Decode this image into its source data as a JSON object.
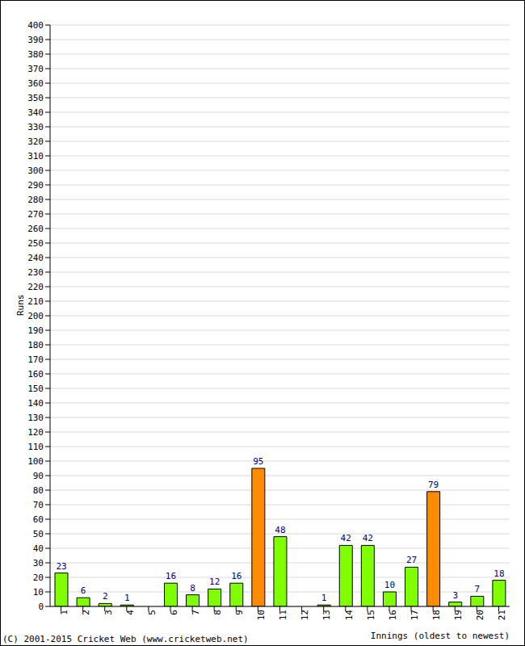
{
  "chart_data": {
    "type": "bar",
    "categories": [
      "1",
      "2",
      "3",
      "4",
      "5",
      "6",
      "7",
      "8",
      "9",
      "10",
      "11",
      "12",
      "13",
      "14",
      "15",
      "16",
      "17",
      "18",
      "19",
      "20",
      "21"
    ],
    "values": [
      23,
      6,
      2,
      1,
      0,
      16,
      8,
      12,
      16,
      95,
      48,
      0,
      1,
      42,
      42,
      10,
      27,
      79,
      3,
      7,
      18
    ],
    "colors": [
      "#7fff00",
      "#7fff00",
      "#7fff00",
      "#7fff00",
      "#7fff00",
      "#7fff00",
      "#7fff00",
      "#7fff00",
      "#7fff00",
      "#ff8c00",
      "#7fff00",
      "#7fff00",
      "#7fff00",
      "#7fff00",
      "#7fff00",
      "#7fff00",
      "#7fff00",
      "#ff8c00",
      "#7fff00",
      "#7fff00",
      "#7fff00"
    ],
    "x_label": "Innings (oldest to newest)",
    "y_label": "Runs",
    "footer": "(C) 2001-2015 Cricket Web (www.cricketweb.net)",
    "ylim": [
      0,
      400
    ],
    "yticks": [
      0,
      10,
      20,
      30,
      40,
      50,
      60,
      70,
      80,
      90,
      100,
      110,
      120,
      130,
      140,
      150,
      160,
      170,
      180,
      190,
      200,
      210,
      220,
      230,
      240,
      250,
      260,
      270,
      280,
      290,
      300,
      310,
      320,
      330,
      340,
      350,
      360,
      370,
      380,
      390,
      400
    ],
    "grid": true,
    "data_labels": true
  }
}
